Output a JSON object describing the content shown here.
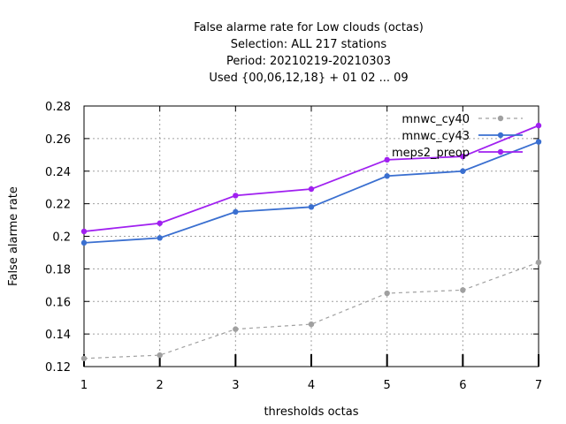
{
  "chart_data": {
    "type": "line",
    "title_lines": [
      "False alarme rate  for Low clouds (octas)",
      "Selection: ALL    217 stations",
      "Period: 20210219-20210303",
      "Used {00,06,12,18} + 01 02 ... 09"
    ],
    "xlabel": "thresholds octas",
    "ylabel": "False alarme rate",
    "x": [
      1,
      2,
      3,
      4,
      5,
      6,
      7
    ],
    "xlim": [
      1,
      7
    ],
    "ylim": [
      0.12,
      0.28
    ],
    "yticks": [
      "0.12",
      "0.14",
      "0.16",
      "0.18",
      "0.2",
      "0.22",
      "0.24",
      "0.26",
      "0.28"
    ],
    "xticks": [
      "1",
      "2",
      "3",
      "4",
      "5",
      "6",
      "7"
    ],
    "grid": true,
    "legend_position": "top-right",
    "series": [
      {
        "name": "mnwc_cy40",
        "color": "#a0a0a0",
        "dashed": true,
        "values": [
          0.125,
          0.127,
          0.143,
          0.146,
          0.165,
          0.167,
          0.184
        ]
      },
      {
        "name": "mnwc_cy43",
        "color": "#3a6fd0",
        "dashed": false,
        "values": [
          0.196,
          0.199,
          0.215,
          0.218,
          0.237,
          0.24,
          0.258
        ]
      },
      {
        "name": "meps2_preop",
        "color": "#a020f0",
        "dashed": false,
        "values": [
          0.203,
          0.208,
          0.225,
          0.229,
          0.247,
          0.249,
          0.268
        ]
      }
    ]
  }
}
